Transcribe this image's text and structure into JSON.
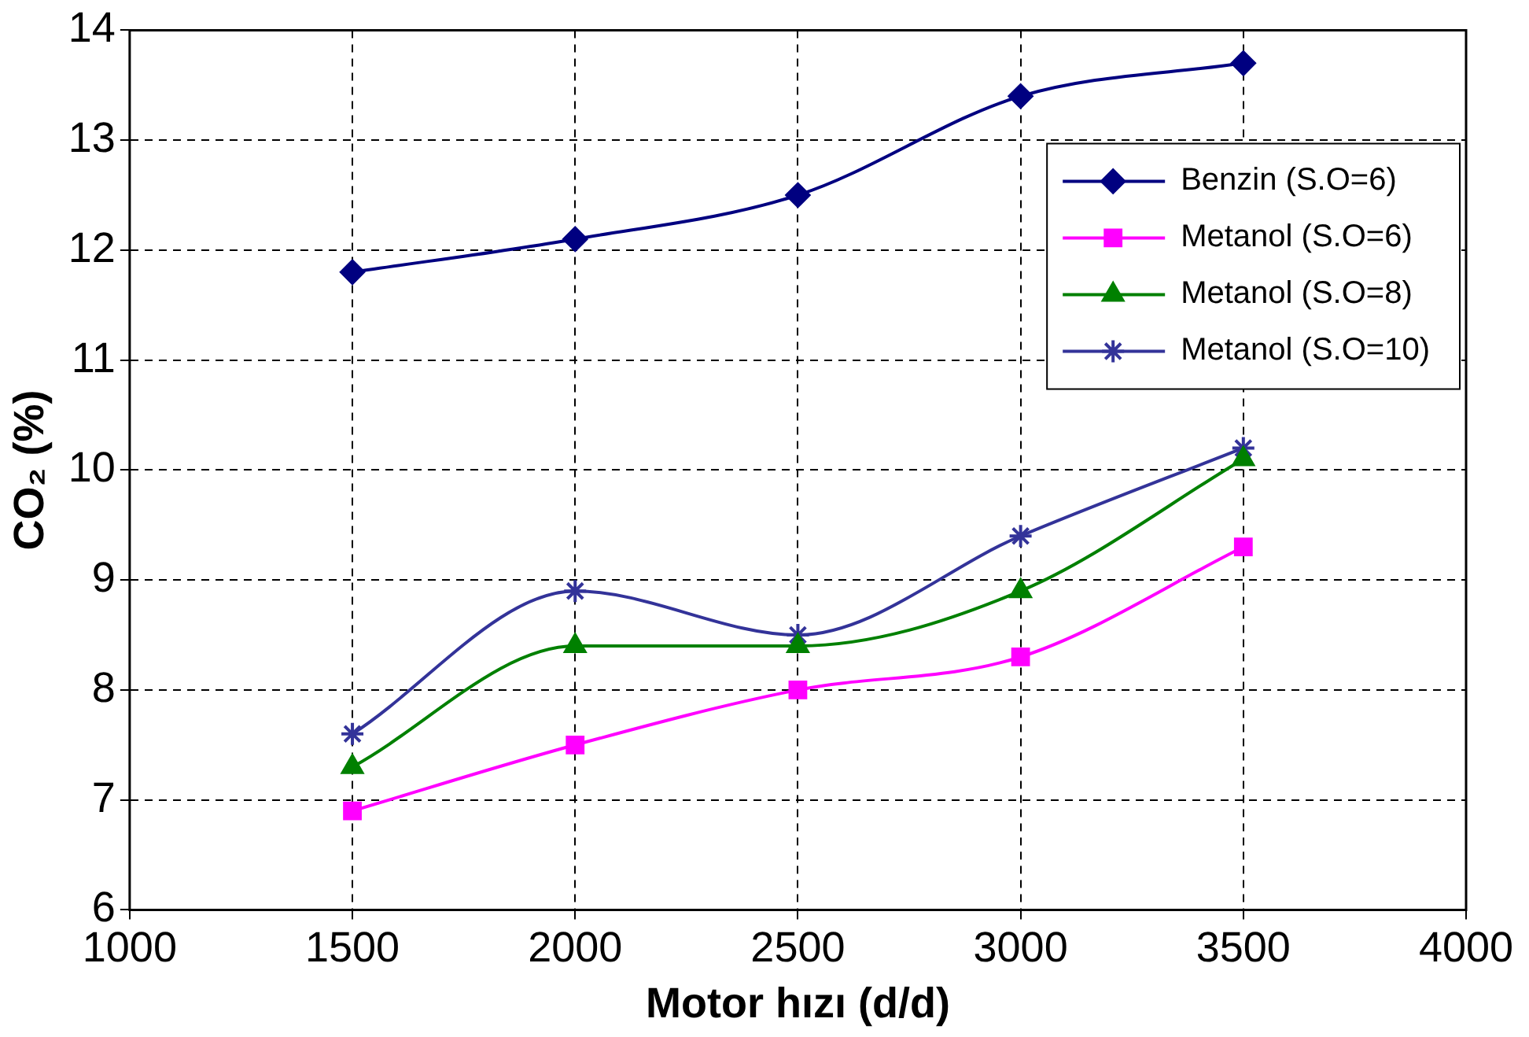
{
  "chart_data": {
    "type": "line",
    "xlabel": "Motor hızı (d/d)",
    "ylabel": "CO₂ (%)",
    "x": [
      1500,
      2000,
      2500,
      3000,
      3500
    ],
    "series": [
      {
        "name": "Benzin (S.O=6)",
        "color": "#000080",
        "marker": "diamond",
        "values": [
          11.8,
          12.1,
          12.5,
          13.4,
          13.7
        ]
      },
      {
        "name": "Metanol (S.O=6)",
        "color": "#ff00ff",
        "marker": "square",
        "values": [
          6.9,
          7.5,
          8.0,
          8.3,
          9.3
        ]
      },
      {
        "name": "Metanol (S.O=8)",
        "color": "#008000",
        "marker": "triangle",
        "values": [
          7.3,
          8.4,
          8.4,
          8.9,
          10.1
        ]
      },
      {
        "name": "Metanol (S.O=10)",
        "color": "#333399",
        "marker": "cross",
        "values": [
          7.6,
          8.9,
          8.5,
          9.4,
          10.2
        ]
      }
    ],
    "xlim": [
      1000,
      4000
    ],
    "xticks": [
      1000,
      1500,
      2000,
      2500,
      3000,
      3500,
      4000
    ],
    "ylim": [
      6,
      14
    ],
    "yticks": [
      6,
      7,
      8,
      9,
      10,
      11,
      12,
      13,
      14
    ],
    "grid": true,
    "legend": "top right",
    "line_style": "solid"
  }
}
